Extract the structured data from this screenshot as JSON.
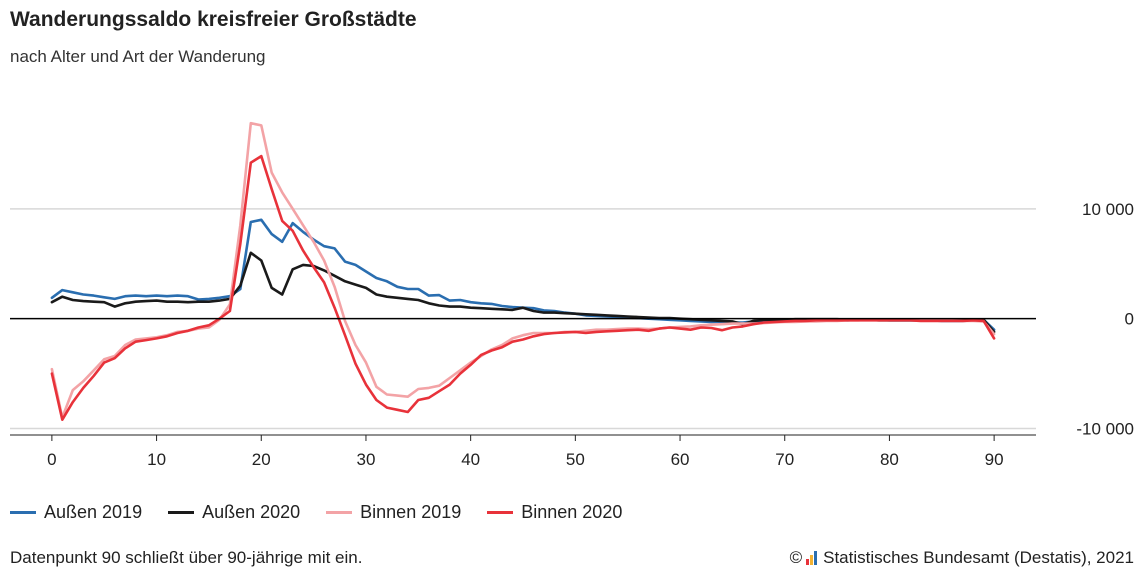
{
  "header": {
    "title": "Wanderungssaldo kreisfreier Großstädte",
    "subtitle": "nach Alter und Art der Wanderung"
  },
  "footer": {
    "note": "Datenpunkt 90 schließt über 90-jährige mit ein.",
    "copyright_symbol": "©",
    "source": "Statistisches Bundesamt (Destatis), 2021"
  },
  "colors": {
    "aussen_2019": "#2a6eb0",
    "aussen_2020": "#1a1a1a",
    "binnen_2019": "#f3a3a6",
    "binnen_2020": "#e8323a",
    "grid": "#d8d8d8",
    "zero": "#000000",
    "logo": [
      "#e8323a",
      "#f2b233",
      "#2a6eb0"
    ]
  },
  "chart_data": {
    "type": "line",
    "title": "Wanderungssaldo kreisfreier Großstädte",
    "subtitle": "nach Alter und Art der Wanderung",
    "xlabel": "",
    "ylabel": "",
    "xlim": [
      -4,
      94
    ],
    "ylim": [
      -10500,
      19000
    ],
    "x_ticks": [
      0,
      10,
      20,
      30,
      40,
      50,
      60,
      70,
      80,
      90
    ],
    "y_ticks": [
      -10000,
      0,
      10000
    ],
    "y_tick_labels": [
      "-10 000",
      "0",
      "10 000"
    ],
    "grid": "horizontal",
    "legend": "bottom",
    "x": [
      0,
      1,
      2,
      3,
      4,
      5,
      6,
      7,
      8,
      9,
      10,
      11,
      12,
      13,
      14,
      15,
      16,
      17,
      18,
      19,
      20,
      21,
      22,
      23,
      24,
      25,
      26,
      27,
      28,
      29,
      30,
      31,
      32,
      33,
      34,
      35,
      36,
      37,
      38,
      39,
      40,
      41,
      42,
      43,
      44,
      45,
      46,
      47,
      48,
      49,
      50,
      51,
      52,
      53,
      54,
      55,
      56,
      57,
      58,
      59,
      60,
      61,
      62,
      63,
      64,
      65,
      66,
      67,
      68,
      69,
      70,
      71,
      72,
      73,
      74,
      75,
      76,
      77,
      78,
      79,
      80,
      81,
      82,
      83,
      84,
      85,
      86,
      87,
      88,
      89,
      90
    ],
    "series": [
      {
        "name": "Außen 2019",
        "color_key": "aussen_2019",
        "values": [
          1900,
          2600,
          2400,
          2200,
          2100,
          1950,
          1800,
          2050,
          2100,
          2050,
          2100,
          2050,
          2100,
          2050,
          1750,
          1800,
          1900,
          2050,
          2700,
          8800,
          9000,
          7700,
          7000,
          8700,
          7900,
          7200,
          6600,
          6400,
          5200,
          4900,
          4300,
          3700,
          3400,
          2900,
          2700,
          2700,
          2100,
          2150,
          1650,
          1700,
          1500,
          1400,
          1350,
          1150,
          1050,
          1000,
          950,
          750,
          700,
          550,
          450,
          300,
          250,
          200,
          150,
          100,
          50,
          0,
          -50,
          -100,
          -150,
          -200,
          -250,
          -300,
          -300,
          -350,
          -350,
          -250,
          -200,
          -150,
          -150,
          -100,
          -100,
          -100,
          -100,
          -100,
          -150,
          -100,
          -100,
          -100,
          -150,
          -150,
          -150,
          -150,
          -150,
          -200,
          -200,
          -200,
          -150,
          -100,
          -1000
        ]
      },
      {
        "name": "Außen 2020",
        "color_key": "aussen_2020",
        "values": [
          1500,
          2000,
          1700,
          1600,
          1550,
          1500,
          1100,
          1400,
          1550,
          1600,
          1650,
          1550,
          1550,
          1500,
          1550,
          1550,
          1650,
          1800,
          3000,
          6000,
          5300,
          2800,
          2200,
          4500,
          4900,
          4800,
          4400,
          3900,
          3400,
          3100,
          2800,
          2200,
          2000,
          1900,
          1800,
          1700,
          1400,
          1200,
          1100,
          1100,
          1000,
          950,
          900,
          850,
          800,
          1000,
          700,
          550,
          550,
          500,
          450,
          400,
          350,
          300,
          250,
          200,
          150,
          100,
          50,
          50,
          0,
          -50,
          -100,
          -150,
          -200,
          -250,
          -500,
          -200,
          -100,
          -100,
          -100,
          -50,
          -50,
          -50,
          -50,
          -50,
          -100,
          -100,
          -100,
          -150,
          -150,
          -150,
          -150,
          -150,
          -150,
          -150,
          -150,
          -150,
          -100,
          -100,
          -1200
        ]
      },
      {
        "name": "Binnen 2019",
        "color_key": "binnen_2019",
        "values": [
          -4600,
          -9000,
          -6500,
          -5700,
          -4700,
          -3700,
          -3400,
          -2400,
          -1900,
          -1800,
          -1700,
          -1500,
          -1200,
          -1100,
          -900,
          -800,
          -100,
          1300,
          8500,
          17800,
          17600,
          13300,
          11500,
          10000,
          8500,
          7000,
          5300,
          2900,
          -200,
          -2400,
          -4000,
          -6200,
          -6900,
          -7000,
          -7100,
          -6400,
          -6300,
          -6100,
          -5400,
          -4700,
          -4000,
          -3400,
          -2800,
          -2400,
          -1800,
          -1500,
          -1300,
          -1300,
          -1300,
          -1200,
          -1200,
          -1100,
          -1000,
          -1000,
          -950,
          -900,
          -900,
          -950,
          -900,
          -800,
          -750,
          -700,
          -600,
          -550,
          -500,
          -450,
          -450,
          -450,
          -400,
          -350,
          -300,
          -300,
          -250,
          -250,
          -200,
          -200,
          -150,
          -150,
          -100,
          -100,
          -100,
          -100,
          -100,
          -150,
          -150,
          -150,
          -150,
          -200,
          -200,
          -250,
          -1400
        ]
      },
      {
        "name": "Binnen 2020",
        "color_key": "binnen_2020",
        "values": [
          -5000,
          -9200,
          -7600,
          -6300,
          -5200,
          -4000,
          -3600,
          -2700,
          -2100,
          -1950,
          -1800,
          -1600,
          -1300,
          -1100,
          -800,
          -600,
          0,
          700,
          6800,
          14200,
          14800,
          11800,
          8900,
          8000,
          6200,
          4700,
          3300,
          1000,
          -1500,
          -4100,
          -6000,
          -7400,
          -8100,
          -8300,
          -8500,
          -7400,
          -7200,
          -6600,
          -6000,
          -5000,
          -4200,
          -3300,
          -2900,
          -2600,
          -2100,
          -1900,
          -1600,
          -1400,
          -1300,
          -1250,
          -1200,
          -1300,
          -1200,
          -1150,
          -1100,
          -1050,
          -1000,
          -1100,
          -900,
          -800,
          -900,
          -1000,
          -800,
          -850,
          -1050,
          -800,
          -700,
          -500,
          -350,
          -300,
          -250,
          -200,
          -200,
          -150,
          -150,
          -150,
          -150,
          -150,
          -150,
          -150,
          -150,
          -150,
          -150,
          -200,
          -200,
          -200,
          -200,
          -200,
          -150,
          -200,
          -1800
        ]
      }
    ]
  }
}
